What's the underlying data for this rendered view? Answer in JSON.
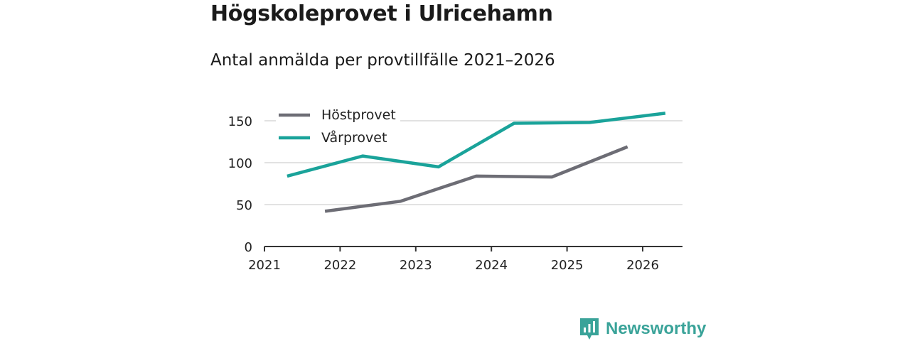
{
  "header": {
    "title": "Högskoleprovet i Ulricehamn",
    "subtitle": "Antal anmälda per provtillfälle 2021–2026"
  },
  "brand": {
    "name": "Newsworthy",
    "icon": "bar-chart-logo-icon",
    "color": "#3aa399"
  },
  "chart_data": {
    "type": "line",
    "title": "Högskoleprovet i Ulricehamn",
    "subtitle": "Antal anmälda per provtillfälle 2021–2026",
    "xlabel": "",
    "ylabel": "",
    "xlim": [
      2021,
      2026.5
    ],
    "ylim": [
      0,
      160
    ],
    "x_ticks": [
      "2021",
      "2022",
      "2023",
      "2024",
      "2025",
      "2026"
    ],
    "y_ticks": [
      "0",
      "50",
      "100",
      "150"
    ],
    "grid": true,
    "legend_position": "top-left",
    "series": [
      {
        "name": "Höstprovet",
        "color": "#6d6d75",
        "x": [
          2021.8,
          2022.8,
          2023.8,
          2024.8,
          2025.8
        ],
        "values": [
          42,
          54,
          84,
          83,
          119
        ]
      },
      {
        "name": "Vårprovet",
        "color": "#1aa39a",
        "x": [
          2021.3,
          2022.3,
          2023.3,
          2024.3,
          2025.3,
          2026.3
        ],
        "values": [
          84,
          108,
          95,
          147,
          148,
          159
        ]
      }
    ]
  }
}
